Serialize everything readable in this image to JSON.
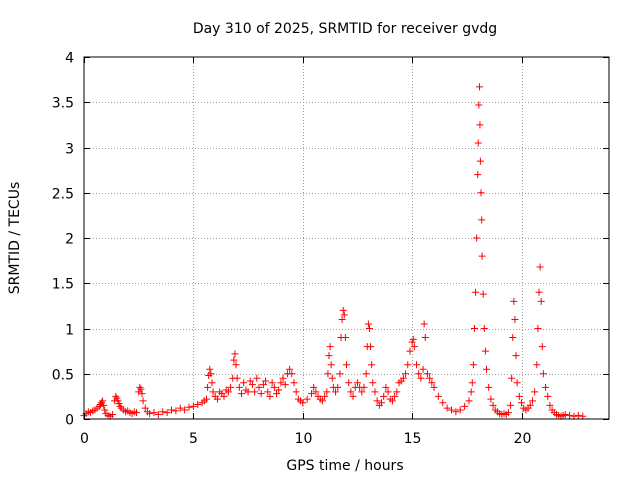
{
  "chart_data": {
    "type": "scatter",
    "title": "Day 310 of 2025, SRMTID for receiver gvdg",
    "xlabel": "GPS time / hours",
    "ylabel": "SRMTID / TECUs",
    "xlim": [
      0,
      24
    ],
    "ylim": [
      0,
      4
    ],
    "xticks": [
      0,
      5,
      10,
      15,
      20
    ],
    "yticks": [
      0,
      0.5,
      1,
      1.5,
      2,
      2.5,
      3,
      3.5,
      4
    ],
    "xtick_labels": [
      "0",
      "5",
      "10",
      "15",
      "20"
    ],
    "ytick_labels": [
      "0",
      "0.5",
      "1",
      "1.5",
      "2",
      "2.5",
      "3",
      "3.5",
      "4"
    ],
    "grid": true,
    "marker": "+",
    "color": "#ff0000",
    "series": [
      {
        "name": "SRMTID",
        "points": [
          [
            0.0,
            0.04
          ],
          [
            0.1,
            0.06
          ],
          [
            0.2,
            0.08
          ],
          [
            0.3,
            0.07
          ],
          [
            0.4,
            0.09
          ],
          [
            0.5,
            0.1
          ],
          [
            0.6,
            0.12
          ],
          [
            0.7,
            0.14
          ],
          [
            0.75,
            0.16
          ],
          [
            0.8,
            0.18
          ],
          [
            0.85,
            0.2
          ],
          [
            0.9,
            0.15
          ],
          [
            0.95,
            0.1
          ],
          [
            1.0,
            0.06
          ],
          [
            1.1,
            0.04
          ],
          [
            1.2,
            0.03
          ],
          [
            1.3,
            0.05
          ],
          [
            1.4,
            0.2
          ],
          [
            1.45,
            0.25
          ],
          [
            1.5,
            0.23
          ],
          [
            1.55,
            0.2
          ],
          [
            1.6,
            0.17
          ],
          [
            1.65,
            0.14
          ],
          [
            1.7,
            0.12
          ],
          [
            1.8,
            0.1
          ],
          [
            1.9,
            0.08
          ],
          [
            2.0,
            0.09
          ],
          [
            2.1,
            0.07
          ],
          [
            2.2,
            0.06
          ],
          [
            2.3,
            0.08
          ],
          [
            2.4,
            0.07
          ],
          [
            2.5,
            0.3
          ],
          [
            2.55,
            0.35
          ],
          [
            2.6,
            0.33
          ],
          [
            2.65,
            0.28
          ],
          [
            2.7,
            0.2
          ],
          [
            2.8,
            0.12
          ],
          [
            2.9,
            0.08
          ],
          [
            3.0,
            0.06
          ],
          [
            3.2,
            0.07
          ],
          [
            3.4,
            0.05
          ],
          [
            3.6,
            0.08
          ],
          [
            3.8,
            0.07
          ],
          [
            4.0,
            0.1
          ],
          [
            4.2,
            0.09
          ],
          [
            4.4,
            0.12
          ],
          [
            4.6,
            0.1
          ],
          [
            4.8,
            0.13
          ],
          [
            5.0,
            0.14
          ],
          [
            5.2,
            0.16
          ],
          [
            5.4,
            0.18
          ],
          [
            5.5,
            0.2
          ],
          [
            5.6,
            0.22
          ],
          [
            5.65,
            0.35
          ],
          [
            5.7,
            0.48
          ],
          [
            5.75,
            0.55
          ],
          [
            5.8,
            0.5
          ],
          [
            5.85,
            0.4
          ],
          [
            5.9,
            0.3
          ],
          [
            6.0,
            0.25
          ],
          [
            6.1,
            0.22
          ],
          [
            6.2,
            0.3
          ],
          [
            6.3,
            0.28
          ],
          [
            6.4,
            0.25
          ],
          [
            6.5,
            0.32
          ],
          [
            6.6,
            0.3
          ],
          [
            6.7,
            0.35
          ],
          [
            6.8,
            0.45
          ],
          [
            6.85,
            0.65
          ],
          [
            6.9,
            0.72
          ],
          [
            6.95,
            0.6
          ],
          [
            7.0,
            0.45
          ],
          [
            7.1,
            0.35
          ],
          [
            7.2,
            0.28
          ],
          [
            7.3,
            0.4
          ],
          [
            7.4,
            0.32
          ],
          [
            7.5,
            0.3
          ],
          [
            7.6,
            0.42
          ],
          [
            7.7,
            0.38
          ],
          [
            7.8,
            0.3
          ],
          [
            7.9,
            0.45
          ],
          [
            8.0,
            0.35
          ],
          [
            8.1,
            0.28
          ],
          [
            8.2,
            0.38
          ],
          [
            8.3,
            0.42
          ],
          [
            8.4,
            0.3
          ],
          [
            8.5,
            0.25
          ],
          [
            8.6,
            0.4
          ],
          [
            8.7,
            0.35
          ],
          [
            8.8,
            0.28
          ],
          [
            8.9,
            0.32
          ],
          [
            9.0,
            0.4
          ],
          [
            9.1,
            0.45
          ],
          [
            9.2,
            0.38
          ],
          [
            9.3,
            0.5
          ],
          [
            9.4,
            0.55
          ],
          [
            9.5,
            0.5
          ],
          [
            9.6,
            0.4
          ],
          [
            9.7,
            0.3
          ],
          [
            9.8,
            0.22
          ],
          [
            9.9,
            0.2
          ],
          [
            10.0,
            0.18
          ],
          [
            10.2,
            0.22
          ],
          [
            10.4,
            0.28
          ],
          [
            10.5,
            0.35
          ],
          [
            10.6,
            0.3
          ],
          [
            10.7,
            0.25
          ],
          [
            10.8,
            0.22
          ],
          [
            10.9,
            0.2
          ],
          [
            11.0,
            0.25
          ],
          [
            11.1,
            0.3
          ],
          [
            11.15,
            0.5
          ],
          [
            11.2,
            0.7
          ],
          [
            11.25,
            0.8
          ],
          [
            11.3,
            0.6
          ],
          [
            11.35,
            0.45
          ],
          [
            11.4,
            0.35
          ],
          [
            11.5,
            0.3
          ],
          [
            11.6,
            0.35
          ],
          [
            11.7,
            0.5
          ],
          [
            11.75,
            0.9
          ],
          [
            11.8,
            1.1
          ],
          [
            11.85,
            1.2
          ],
          [
            11.9,
            1.15
          ],
          [
            11.95,
            0.9
          ],
          [
            12.0,
            0.6
          ],
          [
            12.1,
            0.4
          ],
          [
            12.2,
            0.3
          ],
          [
            12.3,
            0.25
          ],
          [
            12.4,
            0.35
          ],
          [
            12.5,
            0.4
          ],
          [
            12.6,
            0.35
          ],
          [
            12.7,
            0.3
          ],
          [
            12.8,
            0.35
          ],
          [
            12.9,
            0.5
          ],
          [
            12.95,
            0.8
          ],
          [
            13.0,
            1.05
          ],
          [
            13.05,
            1.0
          ],
          [
            13.1,
            0.8
          ],
          [
            13.15,
            0.6
          ],
          [
            13.2,
            0.4
          ],
          [
            13.3,
            0.3
          ],
          [
            13.4,
            0.2
          ],
          [
            13.5,
            0.15
          ],
          [
            13.6,
            0.18
          ],
          [
            13.7,
            0.25
          ],
          [
            13.8,
            0.35
          ],
          [
            13.9,
            0.3
          ],
          [
            14.0,
            0.22
          ],
          [
            14.1,
            0.2
          ],
          [
            14.2,
            0.25
          ],
          [
            14.3,
            0.3
          ],
          [
            14.4,
            0.4
          ],
          [
            14.5,
            0.42
          ],
          [
            14.6,
            0.45
          ],
          [
            14.7,
            0.5
          ],
          [
            14.8,
            0.6
          ],
          [
            14.9,
            0.75
          ],
          [
            15.0,
            0.85
          ],
          [
            15.05,
            0.88
          ],
          [
            15.1,
            0.8
          ],
          [
            15.2,
            0.6
          ],
          [
            15.3,
            0.5
          ],
          [
            15.4,
            0.45
          ],
          [
            15.5,
            0.55
          ],
          [
            15.55,
            1.05
          ],
          [
            15.6,
            0.9
          ],
          [
            15.7,
            0.5
          ],
          [
            15.8,
            0.45
          ],
          [
            15.9,
            0.4
          ],
          [
            16.0,
            0.35
          ],
          [
            16.2,
            0.25
          ],
          [
            16.4,
            0.18
          ],
          [
            16.6,
            0.12
          ],
          [
            16.8,
            0.1
          ],
          [
            17.0,
            0.08
          ],
          [
            17.2,
            0.1
          ],
          [
            17.4,
            0.14
          ],
          [
            17.6,
            0.2
          ],
          [
            17.7,
            0.3
          ],
          [
            17.75,
            0.4
          ],
          [
            17.8,
            0.6
          ],
          [
            17.85,
            1.0
          ],
          [
            17.9,
            1.4
          ],
          [
            17.95,
            2.0
          ],
          [
            18.0,
            2.7
          ],
          [
            18.02,
            3.05
          ],
          [
            18.05,
            3.47
          ],
          [
            18.08,
            3.67
          ],
          [
            18.1,
            3.25
          ],
          [
            18.12,
            2.85
          ],
          [
            18.15,
            2.5
          ],
          [
            18.18,
            2.2
          ],
          [
            18.2,
            1.8
          ],
          [
            18.25,
            1.38
          ],
          [
            18.3,
            1.0
          ],
          [
            18.35,
            0.75
          ],
          [
            18.4,
            0.55
          ],
          [
            18.5,
            0.35
          ],
          [
            18.6,
            0.22
          ],
          [
            18.7,
            0.15
          ],
          [
            18.8,
            0.1
          ],
          [
            18.9,
            0.08
          ],
          [
            19.0,
            0.06
          ],
          [
            19.1,
            0.05
          ],
          [
            19.2,
            0.06
          ],
          [
            19.3,
            0.05
          ],
          [
            19.4,
            0.07
          ],
          [
            19.5,
            0.15
          ],
          [
            19.55,
            0.45
          ],
          [
            19.6,
            0.9
          ],
          [
            19.65,
            1.3
          ],
          [
            19.7,
            1.1
          ],
          [
            19.75,
            0.7
          ],
          [
            19.8,
            0.4
          ],
          [
            19.9,
            0.25
          ],
          [
            20.0,
            0.18
          ],
          [
            20.1,
            0.12
          ],
          [
            20.2,
            0.1
          ],
          [
            20.3,
            0.12
          ],
          [
            20.4,
            0.15
          ],
          [
            20.5,
            0.2
          ],
          [
            20.6,
            0.3
          ],
          [
            20.7,
            0.6
          ],
          [
            20.75,
            1.0
          ],
          [
            20.8,
            1.4
          ],
          [
            20.85,
            1.68
          ],
          [
            20.9,
            1.3
          ],
          [
            20.95,
            0.8
          ],
          [
            21.0,
            0.5
          ],
          [
            21.1,
            0.35
          ],
          [
            21.2,
            0.25
          ],
          [
            21.3,
            0.15
          ],
          [
            21.4,
            0.1
          ],
          [
            21.5,
            0.07
          ],
          [
            21.6,
            0.05
          ],
          [
            21.7,
            0.04
          ],
          [
            21.8,
            0.03
          ],
          [
            21.9,
            0.04
          ],
          [
            22.0,
            0.05
          ],
          [
            22.2,
            0.04
          ],
          [
            22.4,
            0.03
          ],
          [
            22.6,
            0.04
          ],
          [
            22.8,
            0.03
          ]
        ]
      }
    ]
  }
}
